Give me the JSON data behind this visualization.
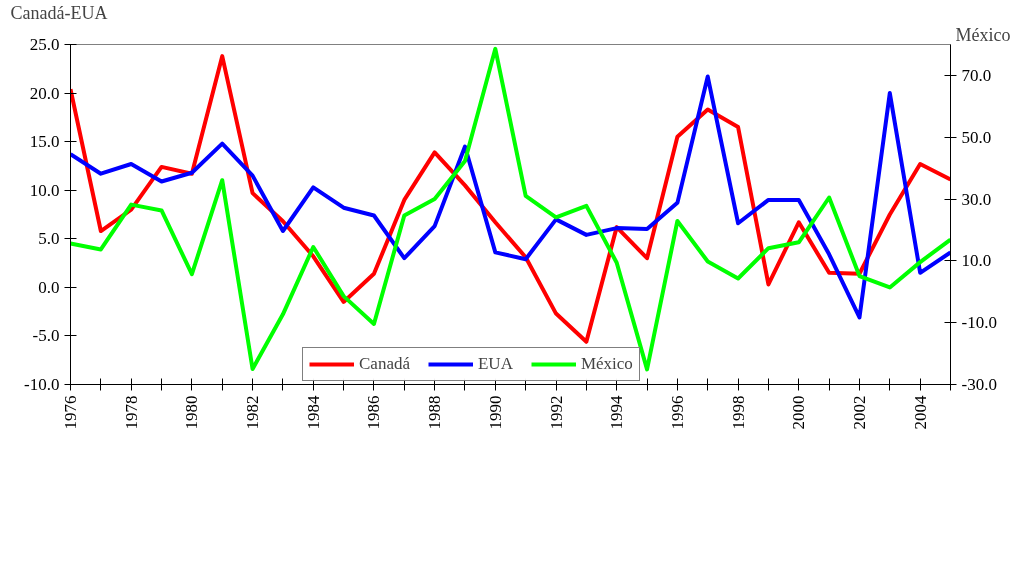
{
  "chart_data": {
    "type": "line",
    "ylabel": "Canadá-EUA",
    "y2label": "México",
    "x": [
      1976,
      1977,
      1978,
      1979,
      1980,
      1981,
      1982,
      1983,
      1984,
      1985,
      1986,
      1987,
      1988,
      1989,
      1990,
      1991,
      1992,
      1993,
      1994,
      1995,
      1996,
      1997,
      1998,
      1999,
      2000,
      2001,
      2002,
      2003,
      2004,
      2005
    ],
    "xlim": [
      1976,
      2005
    ],
    "xticks": [
      1976,
      {
        "value": 1977,
        "label": null
      },
      1978,
      {
        "value": 1979,
        "label": null
      },
      1980,
      {
        "value": 1981,
        "label": null
      },
      1982,
      {
        "value": 1983,
        "label": null
      },
      1984,
      {
        "value": 1985,
        "label": null
      },
      1986,
      {
        "value": 1987,
        "label": null
      },
      1988,
      {
        "value": 1989,
        "label": null
      },
      1990,
      {
        "value": 1991,
        "label": null
      },
      1992,
      {
        "value": 1993,
        "label": null
      },
      1994,
      {
        "value": 1995,
        "label": null
      },
      1996,
      {
        "value": 1997,
        "label": null
      },
      1998,
      {
        "value": 1999,
        "label": null
      },
      2000,
      {
        "value": 2001,
        "label": null
      },
      2002,
      {
        "value": 2003,
        "label": null
      },
      2004,
      {
        "value": 2005,
        "label": null
      }
    ],
    "ylim": [
      -10,
      25
    ],
    "yticks": [
      {
        "value": -10,
        "label": "-10.0"
      },
      {
        "value": -5,
        "label": "-5.0"
      },
      {
        "value": 0,
        "label": "0.0"
      },
      {
        "value": 5,
        "label": "5.0"
      },
      {
        "value": 10,
        "label": "10.0"
      },
      {
        "value": 15,
        "label": "15.0"
      },
      {
        "value": 20,
        "label": "20.0"
      },
      {
        "value": 25,
        "label": "25.0"
      }
    ],
    "y2lim": [
      -30,
      80
    ],
    "y2ticks": [
      {
        "value": -30,
        "label": "-30.0"
      },
      {
        "value": -10,
        "label": "-10.0"
      },
      {
        "value": 10,
        "label": "10.0"
      },
      {
        "value": 30,
        "label": "30.0"
      },
      {
        "value": 50,
        "label": "50.0"
      },
      {
        "value": 70,
        "label": "70.0"
      }
    ],
    "series": [
      {
        "name": "Canadá",
        "color": "#ff0000",
        "values": [
          20.4,
          5.8,
          8.0,
          12.4,
          11.7,
          23.8,
          9.7,
          6.8,
          3.2,
          -1.5,
          1.4,
          9.0,
          13.9,
          10.5,
          6.7,
          3.1,
          -2.7,
          -5.6,
          6.2,
          3.0,
          15.5,
          18.3,
          16.5,
          0.3,
          6.7,
          1.5,
          1.4,
          7.5,
          12.7,
          11.1
        ]
      },
      {
        "name": "EUA",
        "color": "#0000ff",
        "values": [
          13.7,
          11.7,
          12.7,
          10.9,
          11.8,
          14.8,
          11.5,
          5.8,
          10.3,
          8.2,
          7.4,
          3.0,
          6.3,
          14.5,
          3.6,
          2.9,
          7.0,
          5.4,
          6.1,
          6.0,
          8.7,
          21.7,
          6.6,
          9.0,
          9.0,
          3.4,
          -3.1,
          20.0,
          1.5,
          3.6
        ]
      },
      {
        "name": "México",
        "color": "#00ff00",
        "axis": "y2",
        "values": [
          15.6,
          13.7,
          28.2,
          26.3,
          5.7,
          36.1,
          -25,
          -7.3,
          14.5,
          -1.4,
          -10.4,
          24.7,
          30.0,
          42.3,
          78.6,
          31.0,
          24.1,
          27.8,
          9.4,
          -25.1,
          22.9,
          9.8,
          4.3,
          14.1,
          16.0,
          30.5,
          5.1,
          1.4,
          9.6,
          16.9
        ]
      }
    ],
    "grid": false,
    "legend": "bottom",
    "line_style": "solid",
    "marker": "none"
  }
}
